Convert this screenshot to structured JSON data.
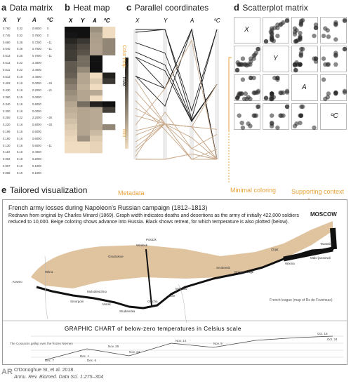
{
  "panels": {
    "a": {
      "letter": "a",
      "title": "Data matrix"
    },
    "b": {
      "letter": "b",
      "title": "Heat map"
    },
    "c": {
      "letter": "c",
      "title": "Parallel coordinates"
    },
    "d": {
      "letter": "d",
      "title": "Scatterplot matrix"
    },
    "e": {
      "letter": "e",
      "title": "Tailored visualization"
    }
  },
  "variables": [
    "X",
    "Y",
    "A",
    "ºC"
  ],
  "data_matrix": [
    [
      "0.760",
      "0.32",
      "0.9000",
      "0"
    ],
    [
      "0.745",
      "0.32",
      "0.7500",
      "0"
    ],
    [
      "0.690",
      "0.28",
      "0.7200",
      "−11"
    ],
    [
      "0.640",
      "0.26",
      "0.7000",
      "−11"
    ],
    [
      "0.613",
      "0.25",
      "0.7000",
      "−11"
    ],
    [
      "0.613",
      "0.22",
      "2.4000",
      ""
    ],
    [
      "0.511",
      "0.22",
      "2.4000",
      ""
    ],
    [
      "0.513",
      "0.19",
      "2.4000",
      ""
    ],
    [
      "0.493",
      "0.16",
      "0.0000",
      "−24"
    ],
    [
      "0.430",
      "0.16",
      "0.2000",
      "−21"
    ],
    [
      "0.380",
      "0.15",
      "0.0000",
      ""
    ],
    [
      "0.340",
      "0.16",
      "0.6000",
      ""
    ],
    [
      "0.300",
      "0.16",
      "0.0000",
      ""
    ],
    [
      "0.250",
      "0.22",
      "2.2000",
      "−26"
    ],
    [
      "0.220",
      "0.16",
      "0.6000",
      "−20"
    ],
    [
      "0.196",
      "0.16",
      "0.6000",
      ""
    ],
    [
      "0.160",
      "0.16",
      "0.6000",
      ""
    ],
    [
      "0.130",
      "0.16",
      "0.6000",
      "−11"
    ],
    [
      "0.110",
      "0.16",
      "0.4000",
      ""
    ],
    [
      "0.082",
      "0.18",
      "0.2000",
      ""
    ],
    [
      "0.067",
      "0.10",
      "0.1000",
      ""
    ],
    [
      "0.068",
      "0.10",
      "0.1000",
      ""
    ]
  ],
  "heatmap": {
    "colormap_label": "Color map:",
    "max_label": "max",
    "min_label": "min"
  },
  "scatter_labels": [
    "X",
    "Y",
    "A",
    "ºC"
  ],
  "tailored": {
    "metadata_label": "Metadata",
    "minimal_label": "Minimal coloring",
    "support_label": "Supporting context",
    "chart_title": "French army losses during Napoleon's Russian campaign (1812–1813)",
    "description": "Redrawn from original by Charles Minard (1869). Graph width indicates deaths and desertions as the army of initially 422,000 soldiers reduced to 10,000. Beige coloring shows advance into Russia. Black shows retreat, for which temperature is also plotted (below).",
    "moscow": "MOSCOW",
    "temp_title": "GRAPHIC CHART of below-zero temperatures in Celsius scale",
    "city_labels": [
      "Kowno",
      "Wilna",
      "Smorgoni",
      "Molodetschno",
      "Gloubokoe",
      "Minsk",
      "Studienska",
      "Orscha",
      "Bobr",
      "Witebsk",
      "Mohilow",
      "Smolensk",
      "Dorogobouge",
      "Chjat",
      "Wixma",
      "Tarantino",
      "Malo-jarosewli",
      "Polotzk"
    ],
    "temp_labels": [
      "Oct. 18",
      "Oct. 24",
      "Nov. 9",
      "Nov. 14",
      "Nov. 24",
      "Nov. 28",
      "Dec. 1",
      "Dec. 6",
      "Dec. 7"
    ],
    "river_note": "The Cossacks gallop over the frozen Niemen",
    "scale_note": "French league (map of Rs de Fezensac)"
  },
  "citation": {
    "line1": "O'Donoghue SI, et al. 2018.",
    "line2": "Annu. Rev. Biomed. Data Sci. 1:275–304",
    "logo": "AR"
  },
  "colors": {
    "advance": "#e0c4a0",
    "retreat": "#111111",
    "accent": "#e8a23a"
  }
}
